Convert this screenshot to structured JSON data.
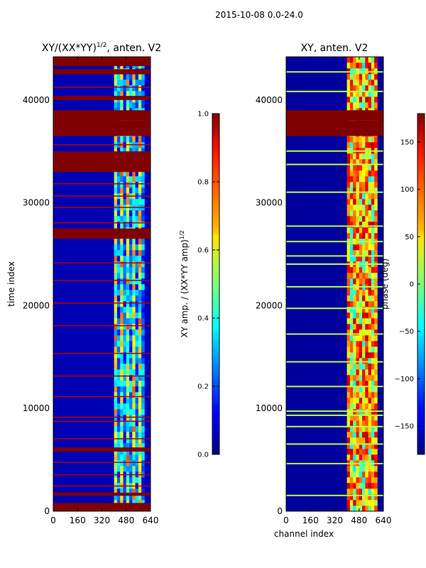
{
  "suptitle": "2015-10-08 0.0-24.0",
  "chart_data": [
    {
      "type": "heatmap",
      "title_main": "XY/(XX*YY)",
      "title_sup": "1/2",
      "title_suffix": ", anten. V2",
      "xlabel": "",
      "ylabel": "time index",
      "xlim": [
        0,
        640
      ],
      "ylim": [
        0,
        44200
      ],
      "xticks": [
        0,
        160,
        320,
        480,
        640
      ],
      "yticks": [
        0,
        10000,
        20000,
        30000,
        40000
      ],
      "colorbar": {
        "label_main": "XY amp. / (XX*YY amp)",
        "label_sup": "1/2",
        "range": [
          0.0,
          1.0
        ],
        "ticks": [
          "0.0",
          "0.2",
          "0.4",
          "0.6",
          "0.8",
          "1.0"
        ]
      },
      "features": {
        "background_value": 0.05,
        "active_channel_range": [
          400,
          600
        ],
        "saturated_time_blocks": [
          [
            0,
            800
          ],
          [
            1500,
            1800
          ],
          [
            5800,
            6200
          ],
          [
            26500,
            27500
          ],
          [
            33000,
            35000
          ],
          [
            36500,
            38000
          ],
          [
            38000,
            39000
          ],
          [
            40000,
            40400
          ],
          [
            42500,
            43000
          ],
          [
            43300,
            44200
          ]
        ],
        "thin_lines_time": [
          2500,
          3600,
          4800,
          7100,
          8800,
          9200,
          11200,
          13200,
          15400,
          18100,
          20300,
          22500,
          24200,
          28100,
          29600,
          30700,
          31900,
          35700,
          41300
        ]
      }
    },
    {
      "type": "heatmap",
      "title": "XY, anten. V2",
      "xlabel": "channel index",
      "ylabel": "",
      "xlim": [
        0,
        640
      ],
      "ylim": [
        0,
        44200
      ],
      "xticks": [
        0,
        160,
        320,
        480,
        640
      ],
      "yticks": [
        0,
        10000,
        20000,
        30000,
        40000
      ],
      "colorbar": {
        "label": "phase (deg)",
        "range": [
          -180,
          180
        ],
        "ticks": [
          "150",
          "100",
          "50",
          "0",
          "−50",
          "−100",
          "−150"
        ]
      },
      "features": {
        "background_value": -170,
        "active_channel_range": [
          400,
          600
        ],
        "saturated_time_blocks": [
          [
            36500,
            38000
          ],
          [
            38000,
            39000
          ]
        ],
        "bright_lines_time": [
          1600,
          4700,
          6600,
          8300,
          9400,
          9800,
          12200,
          14600,
          17300,
          19800,
          21900,
          24100,
          24900,
          26300,
          27800,
          31100,
          33800,
          35100,
          40900,
          42800
        ]
      }
    }
  ]
}
